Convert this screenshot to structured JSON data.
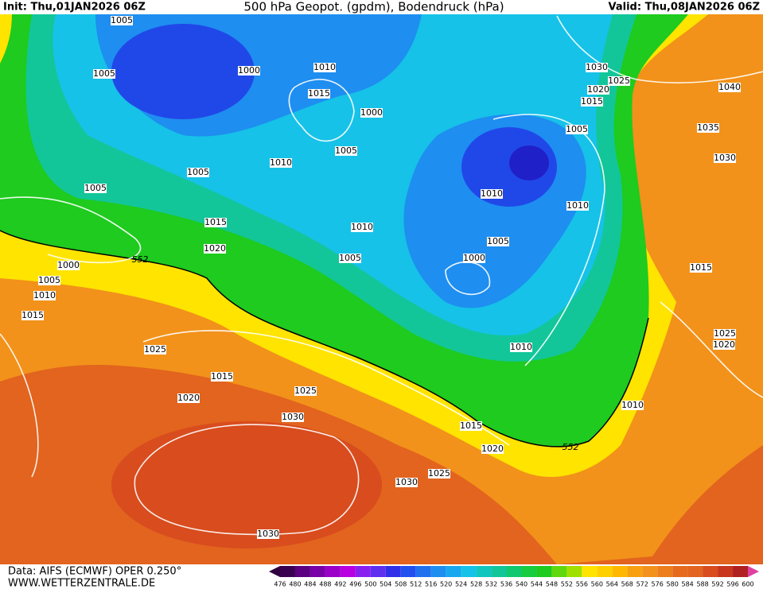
{
  "header": {
    "init": "Init: Thu,01JAN2026 06Z",
    "title": "500 hPa Geopot. (gpdm), Bodendruck (hPa)",
    "valid": "Valid: Thu,08JAN2026 06Z"
  },
  "isobar_labels": [
    1005,
    1005,
    1000,
    1010,
    1015,
    1000,
    1005,
    1010,
    1005,
    1005,
    1015,
    1020,
    1010,
    1005,
    552,
    1000,
    1005,
    1010,
    1015,
    1025,
    1015,
    1020,
    1025,
    1030,
    1030,
    1025,
    1020,
    1015,
    552,
    1030,
    1010,
    1010,
    1000,
    1005,
    1010,
    1010,
    1005,
    1015,
    1020,
    1025,
    1030,
    1040,
    1035,
    1030,
    1015,
    1025,
    1020
  ],
  "footer": {
    "source": "Data: AIFS (ECMWF) OPER 0.250°",
    "site": "WWW.WETTERZENTRALE.DE"
  },
  "scale": [
    476,
    480,
    484,
    488,
    492,
    496,
    500,
    504,
    508,
    512,
    516,
    520,
    524,
    528,
    532,
    536,
    540,
    544,
    548,
    552,
    556,
    560,
    564,
    568,
    572,
    576,
    580,
    584,
    588,
    592,
    596,
    600
  ]
}
